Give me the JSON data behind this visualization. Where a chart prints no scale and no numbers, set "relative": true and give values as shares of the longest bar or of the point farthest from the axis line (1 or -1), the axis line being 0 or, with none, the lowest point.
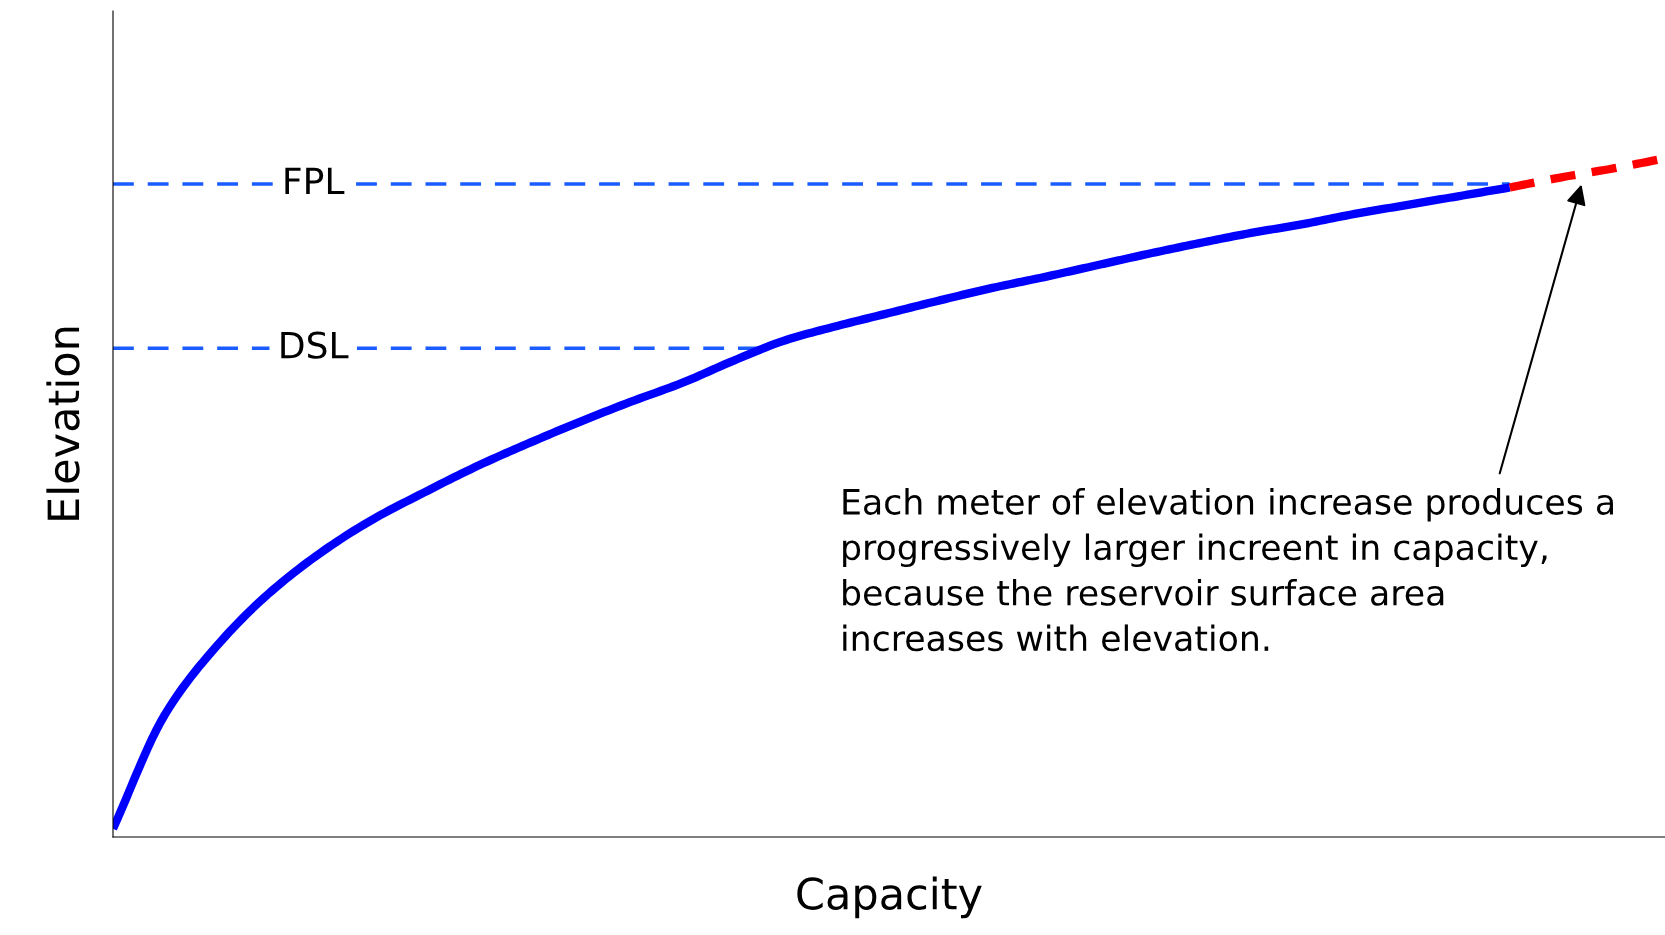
{
  "chart_data": {
    "type": "line",
    "relative": true,
    "xlabel": "Capacity",
    "ylabel": "Elevation",
    "categories": [
      null,
      null,
      null,
      null,
      null,
      null,
      null,
      null,
      null,
      null,
      null,
      null,
      null,
      null,
      null,
      null,
      null,
      null,
      null,
      null,
      null,
      null,
      null,
      null,
      null,
      null,
      null,
      null,
      null,
      null,
      null
    ],
    "series": [
      {
        "color": "#0000ff",
        "line_style": "solid",
        "values": [
          0.012,
          0.18,
          0.281,
          0.358,
          0.418,
          0.467,
          0.507,
          0.545,
          0.579,
          0.611,
          0.641,
          0.669,
          0.702,
          0.732,
          0.753,
          0.772,
          0.791,
          0.809,
          0.825,
          0.842,
          0.859,
          0.875,
          0.89,
          0.903,
          0.918,
          0.931,
          0.944,
          0.957,
          null,
          null,
          null
        ]
      },
      {
        "color": "#ff0000",
        "line_style": "dashed",
        "values": [
          null,
          null,
          null,
          null,
          null,
          null,
          null,
          null,
          null,
          null,
          null,
          null,
          null,
          null,
          null,
          null,
          null,
          null,
          null,
          null,
          null,
          null,
          null,
          null,
          null,
          null,
          null,
          0.957,
          0.972,
          0.985,
          1
        ]
      }
    ],
    "ref_lines": [
      {
        "axis": "y",
        "value": 0.962,
        "label": "FPL",
        "color": "#1a5cff",
        "line_style": "dashed"
      },
      {
        "axis": "y",
        "value": 0.72,
        "label": "DSL",
        "color": "#1a5cff",
        "line_style": "dashed"
      }
    ],
    "annotations": [
      "Each meter of elevation increase produces a progressively larger increent in capacity, because the reservoir surface area increases with elevation."
    ]
  }
}
